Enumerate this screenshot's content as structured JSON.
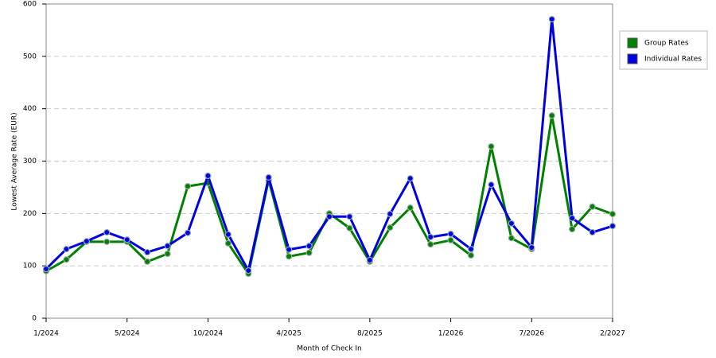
{
  "chart_data": {
    "type": "line",
    "xlabel": "Month of Check In",
    "ylabel": "Lowest Average Rate (EUR)",
    "categories": [
      "1/2024",
      null,
      null,
      null,
      "5/2024",
      null,
      null,
      null,
      "10/2024",
      null,
      null,
      null,
      "4/2025",
      null,
      null,
      null,
      "8/2025",
      null,
      null,
      null,
      "1/2026",
      null,
      null,
      null,
      "7/2026",
      null,
      null,
      null,
      "2/2027"
    ],
    "series": [
      {
        "name": "Group Rates",
        "color": "#008000",
        "values": [
          90,
          112,
          146,
          146,
          146,
          108,
          123,
          252,
          258,
          143,
          85,
          264,
          118,
          125,
          200,
          172,
          108,
          173,
          211,
          141,
          149,
          120,
          328,
          153,
          132,
          387,
          170,
          213,
          199
        ]
      },
      {
        "name": "Individual Rates",
        "color": "#0000e0",
        "values": [
          94,
          132,
          147,
          164,
          150,
          126,
          138,
          163,
          272,
          160,
          91,
          269,
          131,
          138,
          194,
          194,
          111,
          199,
          267,
          155,
          161,
          132,
          255,
          181,
          135,
          571,
          191,
          164,
          176
        ]
      }
    ],
    "ylim": [
      0,
      600
    ],
    "yticks": [
      0,
      100,
      200,
      300,
      400,
      500,
      600
    ],
    "grid": true,
    "legend": "right"
  }
}
